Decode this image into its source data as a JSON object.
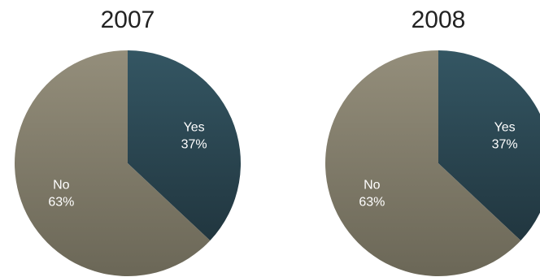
{
  "chart_data": [
    {
      "type": "pie",
      "title": "2007",
      "slices": [
        {
          "label": "Yes",
          "value": 37,
          "value_label": "37%",
          "color": "#2e4a57"
        },
        {
          "label": "No",
          "value": 63,
          "value_label": "63%",
          "color": "#8a8472"
        }
      ]
    },
    {
      "type": "pie",
      "title": "2008",
      "slices": [
        {
          "label": "Yes",
          "value": 37,
          "value_label": "37%",
          "color": "#2e4a57"
        },
        {
          "label": "No",
          "value": 63,
          "value_label": "63%",
          "color": "#8a8472"
        }
      ]
    }
  ]
}
